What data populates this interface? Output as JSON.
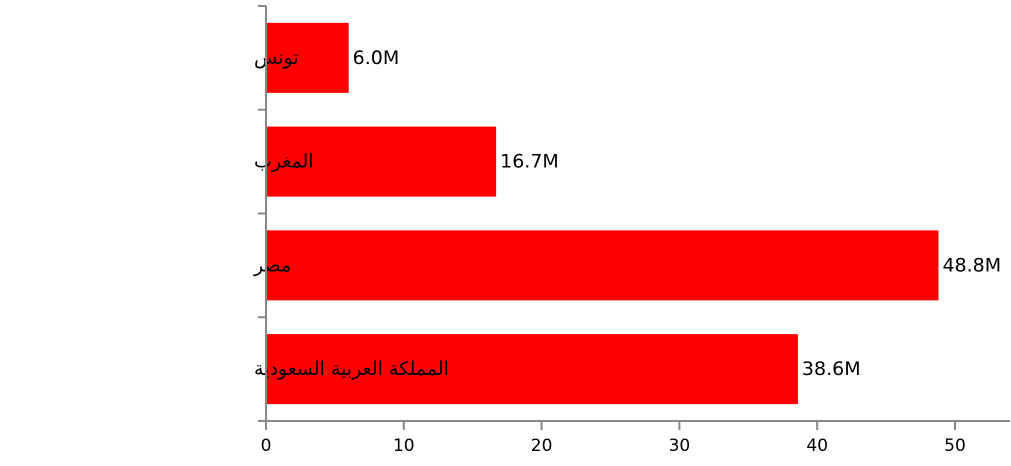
{
  "chart_data": {
    "type": "bar",
    "orientation": "horizontal",
    "categories": [
      "تونس",
      "المغرب",
      "مصر",
      "المملكة العربية السعودية"
    ],
    "values": [
      6.0,
      16.7,
      48.8,
      38.6
    ],
    "value_labels": [
      "6.0M",
      "16.7M",
      "48.8M",
      "38.6M"
    ],
    "title": "",
    "xlabel": "",
    "ylabel": "",
    "xlim": [
      0,
      54
    ],
    "xticks": [
      0,
      10,
      20,
      30,
      40,
      50
    ],
    "grid": false,
    "legend": "none",
    "bar_color": "#ff0000",
    "axis_color": "#888888"
  }
}
